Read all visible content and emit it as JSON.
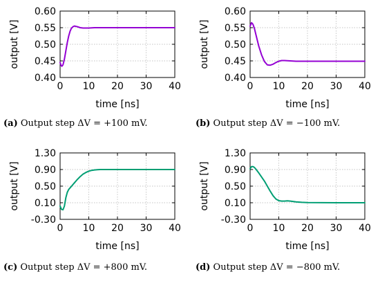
{
  "chart_data": [
    {
      "type": "line",
      "caption_tag": "(a)",
      "caption_text": " Output step ΔV = +100 mV.",
      "xlabel": "time [ns]",
      "ylabel": "output [V]",
      "xlim": [
        0,
        40
      ],
      "ylim": [
        0.4,
        0.6
      ],
      "xticks": [
        "0",
        "10",
        "20",
        "30",
        "40"
      ],
      "yticks": [
        "0.40",
        "0.45",
        "0.50",
        "0.55",
        "0.60"
      ],
      "ytick_values": [
        0.4,
        0.45,
        0.5,
        0.55,
        0.6
      ],
      "xtick_values": [
        0,
        10,
        20,
        30,
        40
      ],
      "grid": true,
      "color": "#9400d3",
      "series": [
        {
          "x": [
            0,
            0.3,
            0.6,
            1.0,
            1.5,
            2.0,
            2.5,
            3.0,
            3.5,
            4.0,
            4.5,
            5.0,
            6.0,
            7.0,
            8.0,
            10.0,
            12.0,
            15.0,
            20.0,
            30.0,
            40.0
          ],
          "values": [
            0.445,
            0.437,
            0.434,
            0.438,
            0.455,
            0.48,
            0.505,
            0.525,
            0.54,
            0.549,
            0.553,
            0.555,
            0.553,
            0.55,
            0.549,
            0.549,
            0.55,
            0.55,
            0.55,
            0.55,
            0.55
          ]
        }
      ]
    },
    {
      "type": "line",
      "caption_tag": "(b)",
      "caption_text": " Output step ΔV = −100 mV.",
      "xlabel": "time [ns]",
      "ylabel": "output [V]",
      "xlim": [
        0,
        40
      ],
      "ylim": [
        0.4,
        0.6
      ],
      "xticks": [
        "0",
        "10",
        "20",
        "30",
        "40"
      ],
      "yticks": [
        "0.40",
        "0.45",
        "0.50",
        "0.55",
        "0.60"
      ],
      "ytick_values": [
        0.4,
        0.45,
        0.5,
        0.55,
        0.6
      ],
      "xtick_values": [
        0,
        10,
        20,
        30,
        40
      ],
      "grid": true,
      "color": "#9400d3",
      "series": [
        {
          "x": [
            0,
            0.5,
            1.0,
            1.5,
            2.0,
            3.0,
            4.0,
            5.0,
            6.0,
            7.0,
            8.0,
            9.0,
            10.0,
            11.0,
            12.0,
            14.0,
            16.0,
            20.0,
            30.0,
            40.0
          ],
          "values": [
            0.555,
            0.565,
            0.56,
            0.548,
            0.53,
            0.495,
            0.468,
            0.448,
            0.438,
            0.437,
            0.44,
            0.445,
            0.449,
            0.451,
            0.451,
            0.45,
            0.449,
            0.449,
            0.449,
            0.449
          ]
        }
      ]
    },
    {
      "type": "line",
      "caption_tag": "(c)",
      "caption_text": " Output step ΔV = +800 mV.",
      "xlabel": "time [ns]",
      "ylabel": "output [V]",
      "xlim": [
        0,
        40
      ],
      "ylim": [
        -0.3,
        1.3
      ],
      "xticks": [
        "0",
        "10",
        "20",
        "30",
        "40"
      ],
      "yticks": [
        "-0.30",
        "0.10",
        "0.50",
        "0.90",
        "1.30"
      ],
      "ytick_values": [
        -0.3,
        0.1,
        0.5,
        0.9,
        1.3
      ],
      "xtick_values": [
        0,
        10,
        20,
        30,
        40
      ],
      "grid": true,
      "color": "#009e73",
      "series": [
        {
          "x": [
            0,
            0.5,
            1.0,
            1.5,
            2.0,
            2.5,
            3.0,
            4.0,
            5.0,
            6.0,
            7.0,
            8.0,
            9.0,
            10.0,
            11.0,
            12.0,
            13.0,
            14.0,
            16.0,
            20.0,
            30.0,
            40.0
          ],
          "values": [
            0.02,
            -0.06,
            -0.07,
            0.02,
            0.22,
            0.35,
            0.42,
            0.5,
            0.58,
            0.66,
            0.73,
            0.79,
            0.83,
            0.86,
            0.88,
            0.89,
            0.895,
            0.9,
            0.9,
            0.9,
            0.9,
            0.9
          ]
        }
      ]
    },
    {
      "type": "line",
      "caption_tag": "(d)",
      "caption_text": " Output step ΔV = −800 mV.",
      "xlabel": "time [ns]",
      "ylabel": "output [V]",
      "xlim": [
        0,
        40
      ],
      "ylim": [
        -0.3,
        1.3
      ],
      "xticks": [
        "0",
        "10",
        "20",
        "30",
        "40"
      ],
      "yticks": [
        "-0.30",
        "0.10",
        "0.50",
        "0.90",
        "1.30"
      ],
      "ytick_values": [
        -0.3,
        0.1,
        0.5,
        0.9,
        1.3
      ],
      "xtick_values": [
        0,
        10,
        20,
        30,
        40
      ],
      "grid": true,
      "color": "#009e73",
      "series": [
        {
          "x": [
            0,
            0.5,
            1.0,
            1.5,
            2.0,
            3.0,
            4.0,
            5.0,
            6.0,
            7.0,
            8.0,
            9.0,
            10.0,
            11.0,
            12.0,
            13.0,
            14.0,
            16.0,
            18.0,
            20.0,
            30.0,
            40.0
          ],
          "values": [
            0.92,
            0.97,
            0.97,
            0.95,
            0.91,
            0.82,
            0.72,
            0.62,
            0.5,
            0.38,
            0.27,
            0.19,
            0.15,
            0.14,
            0.14,
            0.145,
            0.14,
            0.12,
            0.11,
            0.105,
            0.1,
            0.1
          ]
        }
      ]
    }
  ]
}
